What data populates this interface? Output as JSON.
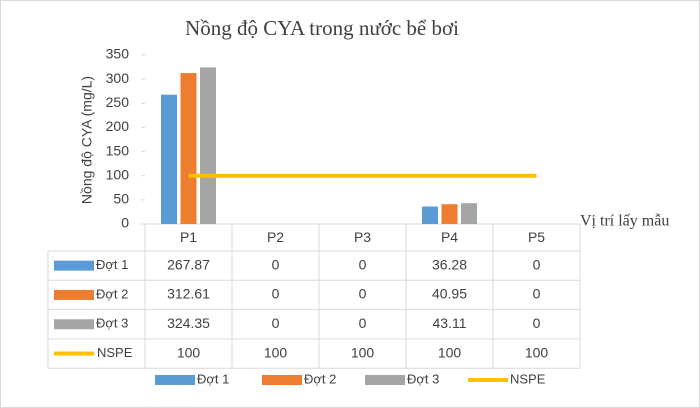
{
  "chart_data": {
    "type": "bar",
    "title": "Nồng độ CYA trong nước bể bơi",
    "y_label": "Nồng độ CYA (mg/L)",
    "x_label": "Vị trí lấy mẫu",
    "categories": [
      "P1",
      "P2",
      "P3",
      "P4",
      "P5"
    ],
    "series": [
      {
        "name": "Đợt 1",
        "color": "#5b9bd5",
        "values": [
          267.87,
          0,
          0,
          36.28,
          0
        ]
      },
      {
        "name": "Đợt 2",
        "color": "#ed7d31",
        "values": [
          312.61,
          0,
          0,
          40.95,
          0
        ]
      },
      {
        "name": "Đợt 3",
        "color": "#a5a5a5",
        "values": [
          324.35,
          0,
          0,
          43.11,
          0
        ]
      },
      {
        "name": "NSPE",
        "color": "#ffc000",
        "type": "line",
        "values": [
          100,
          100,
          100,
          100,
          100
        ]
      }
    ],
    "ylim": [
      0,
      350
    ],
    "yticks": [
      0,
      50,
      100,
      150,
      200,
      250,
      300,
      350
    ],
    "grid": false
  }
}
